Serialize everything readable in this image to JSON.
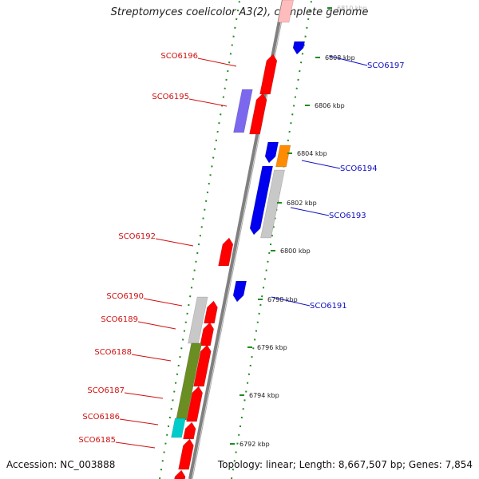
{
  "title": "Streptomyces coelicolor A3(2), complete genome",
  "footer": {
    "accession": "Accession: NC_003888",
    "summary": "Topology: linear; Length: 8,667,507 bp; Genes: 7,854"
  },
  "scale_ticks": [
    "6810 kbp",
    "6808 kbp",
    "6806 kbp",
    "6804 kbp",
    "6802 kbp",
    "6800 kbp",
    "6798 kbp",
    "6796 kbp",
    "6794 kbp",
    "6792 kbp"
  ],
  "forward_genes": [
    "SCO6196",
    "SCO6195",
    "SCO6192",
    "SCO6190",
    "SCO6189",
    "SCO6188",
    "SCO6187",
    "SCO6186",
    "SCO6185"
  ],
  "reverse_genes": [
    "SCO6197",
    "SCO6194",
    "SCO6193",
    "SCO6191"
  ],
  "colors": {
    "forward_label": "#d01010",
    "reverse_label": "#1010c0",
    "forward_gene": "#ff0000",
    "reverse_gene": "#0000ee",
    "purple_gene": "#7b68ee",
    "orange_gene": "#ff8c00",
    "gray_gene": "#c8c8c8",
    "olive_gene": "#6b8e23",
    "cyan_gene": "#00cccc",
    "backbone": "#808080",
    "dots": "#228b22"
  }
}
